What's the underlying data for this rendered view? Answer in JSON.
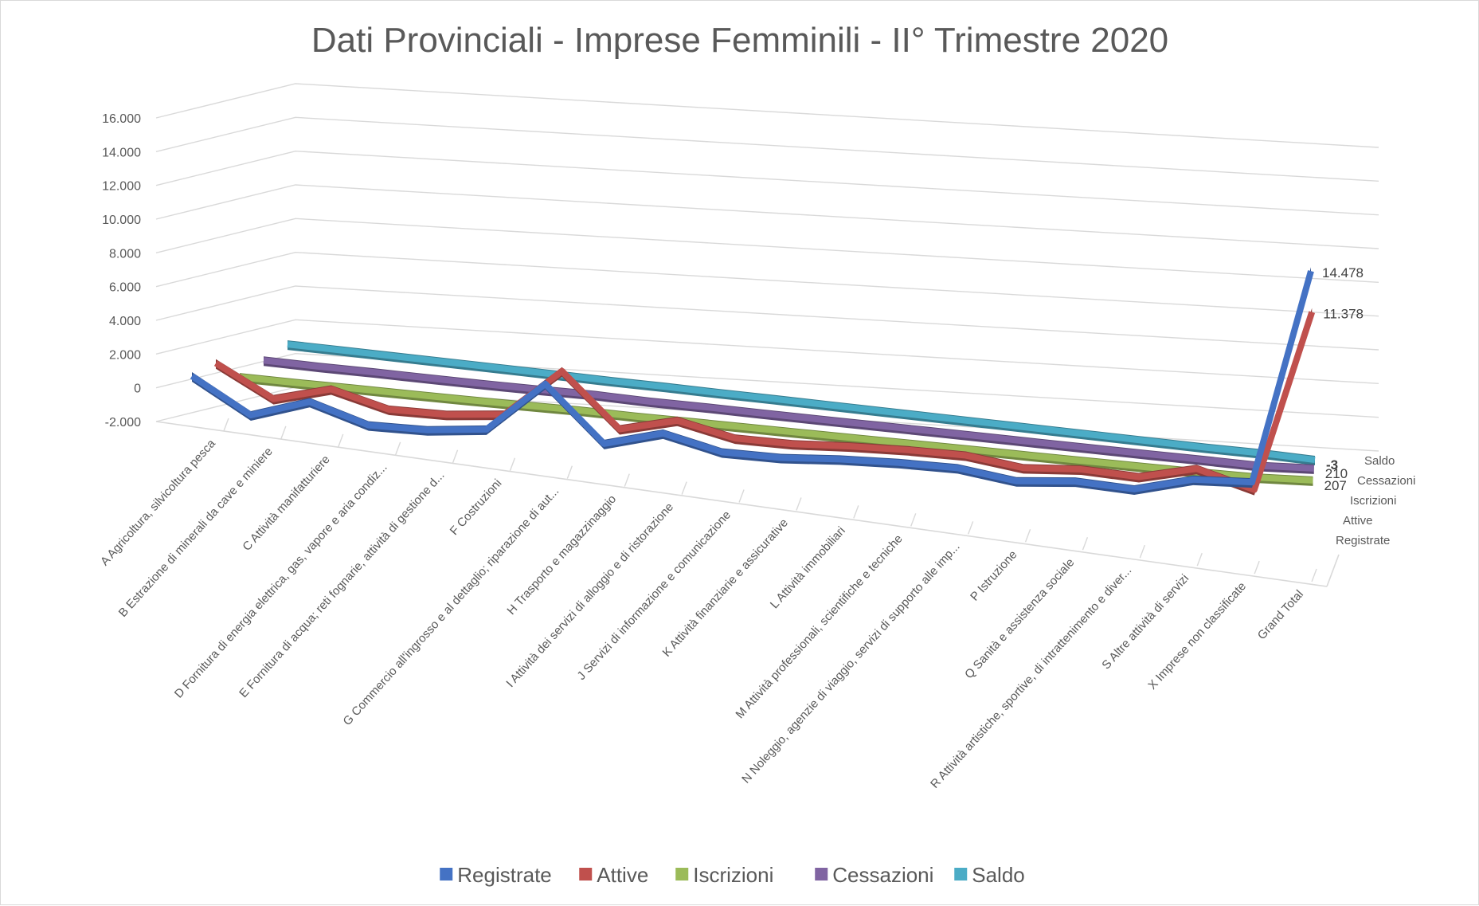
{
  "chart_data": {
    "type": "line",
    "title": "Dati Provinciali - Imprese Femminili - II° Trimestre 2020",
    "xlabel": "",
    "ylabel": "",
    "ylim": [
      -2000,
      16000
    ],
    "y_ticks": [
      "-2.000",
      "0",
      "2.000",
      "4.000",
      "6.000",
      "8.000",
      "10.000",
      "12.000",
      "14.000",
      "16.000"
    ],
    "grid": true,
    "legend_position": "bottom",
    "categories": [
      "A Agricoltura, silvicoltura pesca",
      "B Estrazione di minerali da cave e miniere",
      "C Attività manifatturiere",
      "D Fornitura di energia elettrica, gas, vapore e aria condiz...",
      "E Fornitura di acqua; reti fognarie, attività di gestione d...",
      "F Costruzioni",
      "G Commercio all'ingrosso e al dettaglio; riparazione di aut...",
      "H Trasporto e magazzinaggio",
      "I Attività dei servizi di alloggio e di ristorazione",
      "J Servizi di informazione e comunicazione",
      "K Attività finanziarie e assicurative",
      "L Attività immobiliari",
      "M Attività professionali, scientifiche e tecniche",
      "N Noleggio, agenzie di viaggio, servizi di supporto alle imp...",
      "P Istruzione",
      "Q Sanità e assistenza sociale",
      "R Attività artistiche, sportive, di intrattenimento e diver...",
      "S Altre attività di servizi",
      "X Imprese non classificate",
      "Grand Total"
    ],
    "series": [
      {
        "name": "Registrate",
        "color": "#4472c4",
        "values": [
          2100,
          20,
          1150,
          30,
          45,
          400,
          3500,
          150,
          1100,
          260,
          230,
          450,
          550,
          540,
          55,
          350,
          185,
          1090,
          1240,
          14478
        ]
      },
      {
        "name": "Attive",
        "color": "#c0504d",
        "values": [
          1900,
          15,
          950,
          25,
          40,
          380,
          3400,
          140,
          1000,
          230,
          210,
          400,
          500,
          500,
          50,
          300,
          165,
          1000,
          30,
          11378
        ]
      },
      {
        "name": "Iscrizioni",
        "color": "#9bbb59",
        "values": [
          20,
          0,
          10,
          0,
          0,
          15,
          40,
          2,
          10,
          5,
          3,
          5,
          10,
          10,
          1,
          3,
          2,
          12,
          45,
          207
        ]
      },
      {
        "name": "Cessazioni",
        "color": "#8064a2",
        "values": [
          25,
          0,
          12,
          0,
          0,
          18,
          60,
          2,
          20,
          5,
          4,
          6,
          10,
          10,
          1,
          4,
          3,
          15,
          10,
          210
        ]
      },
      {
        "name": "Saldo",
        "color": "#4bacc6",
        "values": [
          -5,
          0,
          -2,
          0,
          0,
          -3,
          -20,
          0,
          -10,
          0,
          -1,
          -1,
          0,
          0,
          0,
          -1,
          -1,
          -3,
          35,
          -3
        ]
      }
    ],
    "data_labels": [
      {
        "series": "Registrate",
        "text": "14.478"
      },
      {
        "series": "Attive",
        "text": "11.378"
      },
      {
        "series": "Iscrizioni",
        "text": "207"
      },
      {
        "series": "Cessazioni",
        "text": "210"
      },
      {
        "series": "Saldo",
        "text": "-3"
      }
    ],
    "depth_axis_labels": [
      "Saldo",
      "Cessazioni",
      "Iscrizioni",
      "Attive",
      "Registrate"
    ]
  }
}
